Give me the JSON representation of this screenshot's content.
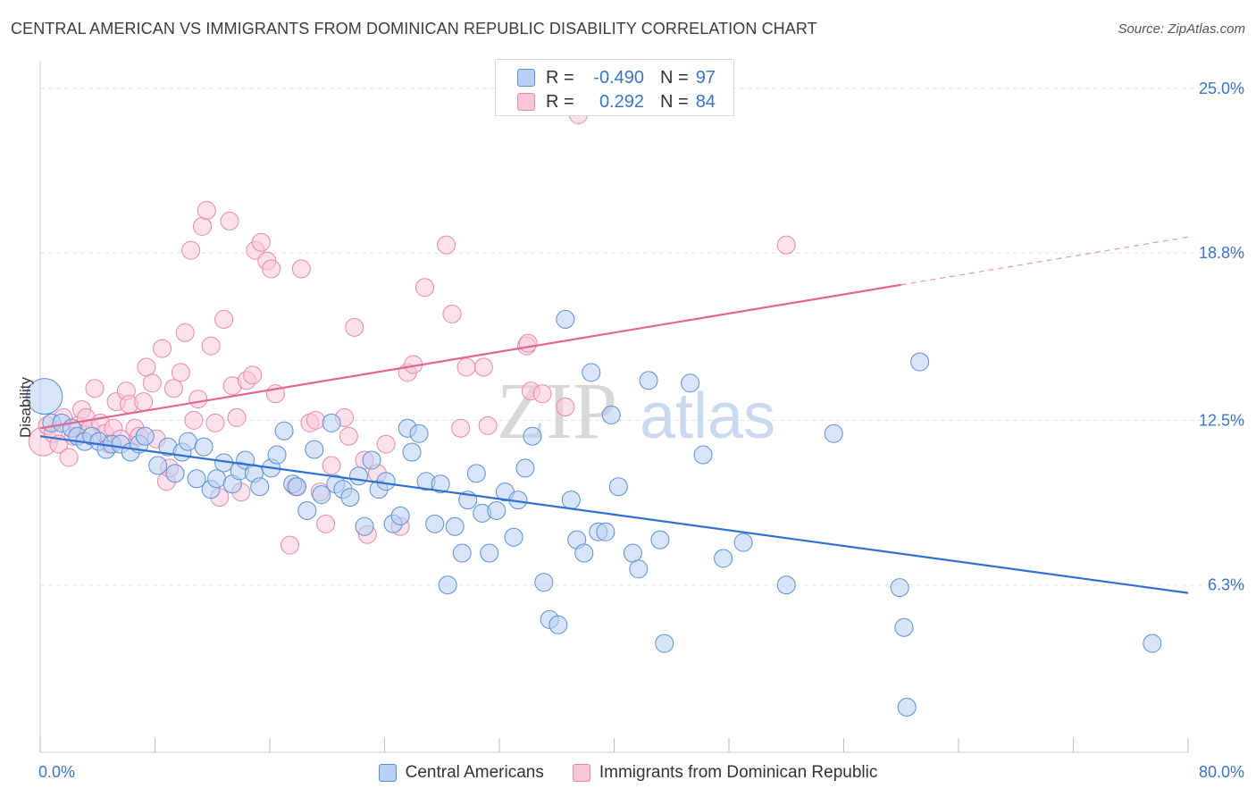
{
  "header": {
    "title": "CENTRAL AMERICAN VS IMMIGRANTS FROM DOMINICAN REPUBLIC DISABILITY CORRELATION CHART",
    "source": "Source: ZipAtlas.com"
  },
  "legend_top": {
    "row1": {
      "r_label": "R =",
      "r_value": "-0.490",
      "n_label": "N =",
      "n_value": "97"
    },
    "row2": {
      "r_label": "R =",
      "r_value": "0.292",
      "n_label": "N =",
      "n_value": "84"
    }
  },
  "legend_bottom": {
    "series1": "Central Americans",
    "series2": "Immigrants from Dominican Republic"
  },
  "watermark": {
    "zip": "ZIP",
    "atlas": "atlas"
  },
  "colors": {
    "blue_fill": "#b8d0f4",
    "blue_stroke": "#5b8fd6",
    "blue_line": "#2f6fd1",
    "pink_fill": "#f9c6d8",
    "pink_stroke": "#e58aab",
    "pink_line": "#e2678f",
    "tick_label": "#3a74c9",
    "grid": "#e3e3e3"
  },
  "chart_data": {
    "type": "scatter",
    "title": "CENTRAL AMERICAN VS IMMIGRANTS FROM DOMINICAN REPUBLIC DISABILITY CORRELATION CHART",
    "ylabel": "Disability",
    "xlabel": "",
    "xlim": [
      0,
      80
    ],
    "ylim": [
      0,
      25.9
    ],
    "x_tick_labels": [
      "0.0%",
      "80.0%"
    ],
    "y_ticks": [
      6.3,
      12.5,
      18.8,
      25.0
    ],
    "y_tick_labels": [
      "6.3%",
      "12.5%",
      "18.8%",
      "25.0%"
    ],
    "grid": true,
    "legend_placement": "top-center",
    "series": [
      {
        "name": "Central Americans",
        "r": -0.49,
        "n": 97,
        "trend": {
          "x": [
            0,
            80
          ],
          "y": [
            11.9,
            6.0
          ],
          "style": "solid"
        },
        "points": [
          [
            0.3,
            13.4,
            20
          ],
          [
            0.8,
            12.4,
            10
          ],
          [
            1.5,
            12.4,
            10
          ],
          [
            2.2,
            12.2,
            10
          ],
          [
            2.6,
            11.9,
            10
          ],
          [
            3.1,
            11.7,
            10
          ],
          [
            3.6,
            11.9,
            10
          ],
          [
            4.1,
            11.7,
            10
          ],
          [
            4.6,
            11.4,
            10
          ],
          [
            5.0,
            11.6,
            10
          ],
          [
            5.6,
            11.6,
            10
          ],
          [
            6.3,
            11.3,
            10
          ],
          [
            6.9,
            11.6,
            10
          ],
          [
            7.3,
            11.9,
            10
          ],
          [
            8.2,
            10.8,
            10
          ],
          [
            8.9,
            11.5,
            10
          ],
          [
            9.4,
            10.5,
            10
          ],
          [
            9.9,
            11.3,
            10
          ],
          [
            10.3,
            11.7,
            10
          ],
          [
            10.9,
            10.3,
            10
          ],
          [
            11.4,
            11.5,
            10
          ],
          [
            11.9,
            9.9,
            10
          ],
          [
            12.3,
            10.3,
            10
          ],
          [
            12.8,
            10.9,
            10
          ],
          [
            13.4,
            10.1,
            10
          ],
          [
            13.9,
            10.6,
            10
          ],
          [
            14.3,
            11.0,
            10
          ],
          [
            14.9,
            10.5,
            10
          ],
          [
            15.3,
            10.0,
            10
          ],
          [
            16.1,
            10.7,
            10
          ],
          [
            16.5,
            11.2,
            10
          ],
          [
            17.0,
            12.1,
            10
          ],
          [
            17.6,
            10.1,
            10
          ],
          [
            17.9,
            10.0,
            10
          ],
          [
            18.6,
            9.1,
            10
          ],
          [
            19.1,
            11.4,
            10
          ],
          [
            19.6,
            9.7,
            10
          ],
          [
            20.3,
            12.4,
            10
          ],
          [
            20.6,
            10.1,
            10
          ],
          [
            21.1,
            9.9,
            10
          ],
          [
            21.6,
            9.6,
            10
          ],
          [
            22.2,
            10.4,
            10
          ],
          [
            22.6,
            8.5,
            10
          ],
          [
            23.1,
            11.0,
            10
          ],
          [
            23.6,
            9.9,
            10
          ],
          [
            24.1,
            10.2,
            10
          ],
          [
            24.6,
            8.6,
            10
          ],
          [
            25.1,
            8.9,
            10
          ],
          [
            25.6,
            12.2,
            10
          ],
          [
            25.9,
            11.3,
            10
          ],
          [
            26.4,
            12.0,
            10
          ],
          [
            26.9,
            10.2,
            10
          ],
          [
            27.5,
            8.6,
            10
          ],
          [
            27.9,
            10.1,
            10
          ],
          [
            28.4,
            6.3,
            10
          ],
          [
            28.9,
            8.5,
            10
          ],
          [
            29.4,
            7.5,
            10
          ],
          [
            29.8,
            9.5,
            10
          ],
          [
            30.4,
            10.5,
            10
          ],
          [
            30.8,
            9.0,
            10
          ],
          [
            31.3,
            7.5,
            10
          ],
          [
            31.8,
            9.1,
            10
          ],
          [
            32.4,
            9.8,
            10
          ],
          [
            33.0,
            8.1,
            10
          ],
          [
            33.3,
            9.5,
            10
          ],
          [
            33.8,
            10.7,
            10
          ],
          [
            34.3,
            11.9,
            10
          ],
          [
            35.1,
            6.4,
            10
          ],
          [
            35.5,
            5.0,
            10
          ],
          [
            36.1,
            4.8,
            10
          ],
          [
            36.6,
            16.3,
            10
          ],
          [
            37.0,
            9.5,
            10
          ],
          [
            37.4,
            8.0,
            10
          ],
          [
            37.9,
            7.5,
            10
          ],
          [
            38.4,
            14.3,
            10
          ],
          [
            38.9,
            8.3,
            10
          ],
          [
            39.4,
            8.3,
            10
          ],
          [
            39.8,
            12.7,
            10
          ],
          [
            40.3,
            10.0,
            10
          ],
          [
            41.3,
            7.5,
            10
          ],
          [
            41.7,
            6.9,
            10
          ],
          [
            42.4,
            14.0,
            10
          ],
          [
            43.2,
            8.0,
            10
          ],
          [
            43.5,
            4.1,
            10
          ],
          [
            45.3,
            13.9,
            10
          ],
          [
            46.2,
            11.2,
            10
          ],
          [
            47.6,
            7.3,
            10
          ],
          [
            49.0,
            7.9,
            10
          ],
          [
            52.0,
            6.3,
            10
          ],
          [
            55.3,
            12.0,
            10
          ],
          [
            59.9,
            6.2,
            10
          ],
          [
            60.2,
            4.7,
            10
          ],
          [
            61.3,
            14.7,
            10
          ],
          [
            60.4,
            1.7,
            10
          ],
          [
            77.5,
            4.1,
            10
          ]
        ]
      },
      {
        "name": "Immigrants from Dominican Republic",
        "r": 0.292,
        "n": 84,
        "trend": {
          "x": [
            0,
            60
          ],
          "y": [
            12.2,
            17.6
          ],
          "style": "solid",
          "extension": {
            "x": [
              60,
              80
            ],
            "y": [
              17.6,
              19.4
            ],
            "style": "dashed"
          }
        },
        "points": [
          [
            0.2,
            11.7,
            16
          ],
          [
            0.5,
            12.3,
            10
          ],
          [
            0.9,
            12.0,
            10
          ],
          [
            1.3,
            11.6,
            10
          ],
          [
            1.6,
            12.6,
            10
          ],
          [
            2.0,
            11.1,
            10
          ],
          [
            2.3,
            11.9,
            10
          ],
          [
            2.6,
            12.3,
            10
          ],
          [
            2.9,
            12.9,
            10
          ],
          [
            3.2,
            12.6,
            10
          ],
          [
            3.5,
            12.2,
            10
          ],
          [
            3.8,
            13.7,
            10
          ],
          [
            4.2,
            12.4,
            10
          ],
          [
            4.5,
            12.0,
            10
          ],
          [
            4.8,
            11.6,
            10
          ],
          [
            5.1,
            12.2,
            10
          ],
          [
            5.3,
            13.2,
            10
          ],
          [
            5.6,
            11.8,
            10
          ],
          [
            6.0,
            13.6,
            10
          ],
          [
            6.2,
            13.1,
            10
          ],
          [
            6.6,
            12.2,
            10
          ],
          [
            6.9,
            11.9,
            10
          ],
          [
            7.2,
            13.2,
            10
          ],
          [
            7.4,
            14.5,
            10
          ],
          [
            7.8,
            13.9,
            10
          ],
          [
            8.1,
            11.8,
            10
          ],
          [
            8.5,
            15.2,
            10
          ],
          [
            8.8,
            10.2,
            10
          ],
          [
            9.0,
            10.7,
            10
          ],
          [
            9.3,
            13.7,
            10
          ],
          [
            9.8,
            14.3,
            10
          ],
          [
            10.1,
            15.8,
            10
          ],
          [
            10.5,
            18.9,
            10
          ],
          [
            10.7,
            12.5,
            10
          ],
          [
            11.0,
            13.3,
            10
          ],
          [
            11.3,
            19.8,
            10
          ],
          [
            11.6,
            20.4,
            10
          ],
          [
            11.9,
            15.3,
            10
          ],
          [
            12.2,
            12.4,
            10
          ],
          [
            12.5,
            9.6,
            10
          ],
          [
            12.8,
            16.3,
            10
          ],
          [
            13.2,
            20.0,
            10
          ],
          [
            13.4,
            13.8,
            10
          ],
          [
            13.7,
            12.6,
            10
          ],
          [
            14.0,
            9.8,
            10
          ],
          [
            14.4,
            14.0,
            10
          ],
          [
            14.8,
            14.2,
            10
          ],
          [
            15.0,
            18.9,
            10
          ],
          [
            15.4,
            19.2,
            10
          ],
          [
            15.8,
            18.5,
            10
          ],
          [
            16.1,
            18.2,
            10
          ],
          [
            16.4,
            13.5,
            10
          ],
          [
            17.4,
            7.8,
            10
          ],
          [
            17.8,
            10.0,
            10
          ],
          [
            18.2,
            18.2,
            10
          ],
          [
            18.8,
            12.4,
            10
          ],
          [
            19.2,
            12.5,
            10
          ],
          [
            19.5,
            9.8,
            10
          ],
          [
            19.9,
            8.6,
            10
          ],
          [
            20.3,
            10.8,
            10
          ],
          [
            21.2,
            12.6,
            10
          ],
          [
            21.5,
            11.9,
            10
          ],
          [
            21.9,
            16.0,
            10
          ],
          [
            22.6,
            11.0,
            10
          ],
          [
            22.8,
            8.2,
            10
          ],
          [
            23.5,
            10.5,
            10
          ],
          [
            24.1,
            11.6,
            10
          ],
          [
            25.1,
            8.5,
            10
          ],
          [
            25.6,
            14.3,
            10
          ],
          [
            26.0,
            14.6,
            10
          ],
          [
            26.8,
            17.5,
            10
          ],
          [
            28.3,
            19.1,
            10
          ],
          [
            28.7,
            16.5,
            10
          ],
          [
            29.3,
            12.2,
            10
          ],
          [
            29.7,
            14.5,
            10
          ],
          [
            30.9,
            14.5,
            10
          ],
          [
            31.2,
            12.3,
            10
          ],
          [
            33.9,
            15.3,
            10
          ],
          [
            34.2,
            13.6,
            10
          ],
          [
            36.6,
            13.0,
            10
          ],
          [
            34.0,
            15.4,
            10
          ],
          [
            35.0,
            13.5,
            10
          ],
          [
            52.0,
            19.1,
            10
          ],
          [
            37.5,
            24.0,
            10
          ]
        ]
      }
    ]
  }
}
